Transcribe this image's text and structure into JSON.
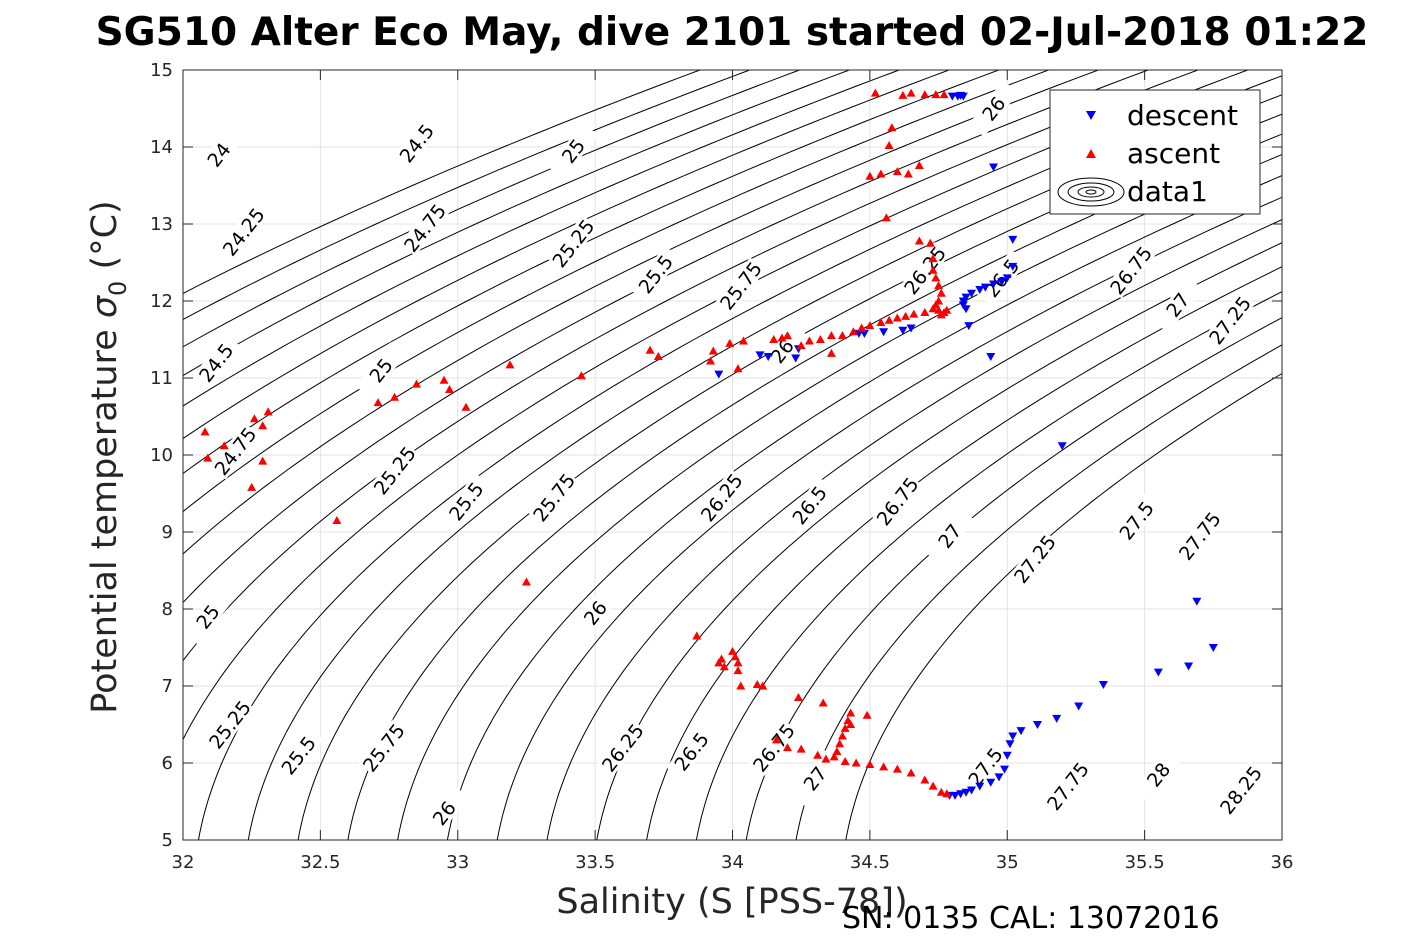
{
  "chart_data": {
    "type": "scatter",
    "title": "SG510 Alter Eco May, dive 2101 started 02-Jul-2018 01:22",
    "xlabel": "Salinity (S [PSS-78])",
    "ylabel_main": "Potential temperature ",
    "ylabel_symbol": "σ",
    "ylabel_sub": "0",
    "ylabel_unit": " (°C)",
    "footer": "SN: 0135  CAL: 13072016",
    "xlim": [
      32,
      36
    ],
    "ylim": [
      5,
      15
    ],
    "xticks": [
      "32",
      "32.5",
      "33",
      "33.5",
      "34",
      "34.5",
      "35",
      "35.5",
      "36"
    ],
    "yticks": [
      "5",
      "6",
      "7",
      "8",
      "9",
      "10",
      "11",
      "12",
      "13",
      "14",
      "15"
    ],
    "grid": true,
    "legend_position": "top-right",
    "legend": [
      "descent",
      "ascent",
      "data1"
    ],
    "colors": {
      "descent": "#0000ff",
      "ascent": "#ff0000",
      "contour": "#000000"
    },
    "contours": {
      "levels": [
        "24",
        "24.25",
        "24.5",
        "24.75",
        "25",
        "25.25",
        "25.5",
        "25.75",
        "26",
        "26.25",
        "26.5",
        "26.75",
        "27",
        "27.25",
        "27.5",
        "27.75",
        "28",
        "28.25"
      ],
      "labels": [
        {
          "text": "24",
          "s": 32.13,
          "t": 13.9
        },
        {
          "text": "24.25",
          "s": 32.22,
          "t": 12.9
        },
        {
          "text": "24.5",
          "s": 32.12,
          "t": 11.2
        },
        {
          "text": "24.75",
          "s": 32.19,
          "t": 10.05
        },
        {
          "text": "25",
          "s": 32.09,
          "t": 7.9
        },
        {
          "text": "25.25",
          "s": 32.17,
          "t": 6.5
        },
        {
          "text": "24.5",
          "s": 32.85,
          "t": 14.05
        },
        {
          "text": "24.75",
          "s": 32.88,
          "t": 12.95
        },
        {
          "text": "25",
          "s": 32.72,
          "t": 11.1
        },
        {
          "text": "25.25",
          "s": 32.77,
          "t": 9.8
        },
        {
          "text": "25.5",
          "s": 32.42,
          "t": 6.1
        },
        {
          "text": "25.75",
          "s": 32.73,
          "t": 6.2
        },
        {
          "text": "26",
          "s": 32.95,
          "t": 5.35
        },
        {
          "text": "25",
          "s": 33.42,
          "t": 13.95
        },
        {
          "text": "25.25",
          "s": 33.42,
          "t": 12.75
        },
        {
          "text": "25.5",
          "s": 33.72,
          "t": 12.35
        },
        {
          "text": "25.75",
          "s": 34.03,
          "t": 12.2
        },
        {
          "text": "26",
          "s": 34.18,
          "t": 11.35
        },
        {
          "text": "25.5",
          "s": 33.03,
          "t": 9.4
        },
        {
          "text": "25.75",
          "s": 33.35,
          "t": 9.45
        },
        {
          "text": "26",
          "s": 33.5,
          "t": 7.95
        },
        {
          "text": "26.25",
          "s": 33.96,
          "t": 9.45
        },
        {
          "text": "26.5",
          "s": 34.28,
          "t": 9.35
        },
        {
          "text": "26.75",
          "s": 34.6,
          "t": 9.4
        },
        {
          "text": "27",
          "s": 34.79,
          "t": 8.95
        },
        {
          "text": "27.25",
          "s": 35.1,
          "t": 8.65
        },
        {
          "text": "27.5",
          "s": 35.47,
          "t": 9.15
        },
        {
          "text": "27.75",
          "s": 35.7,
          "t": 8.95
        },
        {
          "text": "26.25",
          "s": 33.6,
          "t": 6.2
        },
        {
          "text": "26.5",
          "s": 33.85,
          "t": 6.15
        },
        {
          "text": "26.75",
          "s": 34.15,
          "t": 6.2
        },
        {
          "text": "27",
          "s": 34.3,
          "t": 5.8
        },
        {
          "text": "27.5",
          "s": 34.92,
          "t": 5.95
        },
        {
          "text": "27.75",
          "s": 35.22,
          "t": 5.7
        },
        {
          "text": "28",
          "s": 35.55,
          "t": 5.85
        },
        {
          "text": "28.25",
          "s": 35.85,
          "t": 5.65
        },
        {
          "text": "26",
          "s": 34.95,
          "t": 14.5
        },
        {
          "text": "26.25",
          "s": 34.7,
          "t": 12.4
        },
        {
          "text": "26.5",
          "s": 34.98,
          "t": 12.3
        },
        {
          "text": "26.75",
          "s": 35.45,
          "t": 12.4
        },
        {
          "text": "27",
          "s": 35.62,
          "t": 11.95
        },
        {
          "text": "27.25",
          "s": 35.81,
          "t": 11.75
        }
      ]
    },
    "series": [
      {
        "name": "descent",
        "marker": "triangle-down",
        "points": [
          [
            34.8,
            14.66
          ],
          [
            34.82,
            14.66
          ],
          [
            34.83,
            14.67
          ],
          [
            34.84,
            14.66
          ],
          [
            34.95,
            13.74
          ],
          [
            35.02,
            12.8
          ],
          [
            35.02,
            12.45
          ],
          [
            35.0,
            12.3
          ],
          [
            34.98,
            12.25
          ],
          [
            34.95,
            12.22
          ],
          [
            34.92,
            12.18
          ],
          [
            34.9,
            12.15
          ],
          [
            34.87,
            12.1
          ],
          [
            34.85,
            12.05
          ],
          [
            34.84,
            12.0
          ],
          [
            34.84,
            11.95
          ],
          [
            34.85,
            11.9
          ],
          [
            34.86,
            11.68
          ],
          [
            34.94,
            11.28
          ],
          [
            34.65,
            11.65
          ],
          [
            34.62,
            11.62
          ],
          [
            34.55,
            11.6
          ],
          [
            34.48,
            11.58
          ],
          [
            34.46,
            11.58
          ],
          [
            34.24,
            11.38
          ],
          [
            34.23,
            11.26
          ],
          [
            34.13,
            11.28
          ],
          [
            34.1,
            11.3
          ],
          [
            33.95,
            11.05
          ],
          [
            35.2,
            10.12
          ],
          [
            35.75,
            7.5
          ],
          [
            35.69,
            8.1
          ],
          [
            35.66,
            7.26
          ],
          [
            35.55,
            7.18
          ],
          [
            35.35,
            7.02
          ],
          [
            35.26,
            6.74
          ],
          [
            35.18,
            6.58
          ],
          [
            35.11,
            6.5
          ],
          [
            35.05,
            6.42
          ],
          [
            35.02,
            6.35
          ],
          [
            35.01,
            6.25
          ],
          [
            35.0,
            6.1
          ],
          [
            34.99,
            5.92
          ],
          [
            34.97,
            5.82
          ],
          [
            34.94,
            5.75
          ],
          [
            34.9,
            5.7
          ],
          [
            34.87,
            5.65
          ],
          [
            34.85,
            5.62
          ],
          [
            34.83,
            5.6
          ],
          [
            34.81,
            5.58
          ],
          [
            34.79,
            5.58
          ]
        ]
      },
      {
        "name": "ascent",
        "marker": "triangle-up",
        "points": [
          [
            34.52,
            14.7
          ],
          [
            34.62,
            14.67
          ],
          [
            34.65,
            14.7
          ],
          [
            34.7,
            14.68
          ],
          [
            34.74,
            14.68
          ],
          [
            34.77,
            14.68
          ],
          [
            34.58,
            14.25
          ],
          [
            34.57,
            14.02
          ],
          [
            34.5,
            13.62
          ],
          [
            34.54,
            13.65
          ],
          [
            34.6,
            13.68
          ],
          [
            34.64,
            13.65
          ],
          [
            34.68,
            13.76
          ],
          [
            34.56,
            13.08
          ],
          [
            34.68,
            12.78
          ],
          [
            34.72,
            12.75
          ],
          [
            34.73,
            12.55
          ],
          [
            34.73,
            12.4
          ],
          [
            34.74,
            12.3
          ],
          [
            34.75,
            12.2
          ],
          [
            34.76,
            12.1
          ],
          [
            34.75,
            12.0
          ],
          [
            34.74,
            11.95
          ],
          [
            34.73,
            11.9
          ],
          [
            34.75,
            11.88
          ],
          [
            34.77,
            11.85
          ],
          [
            34.78,
            11.88
          ],
          [
            34.76,
            11.82
          ],
          [
            34.7,
            11.85
          ],
          [
            34.66,
            11.83
          ],
          [
            34.63,
            11.8
          ],
          [
            34.6,
            11.78
          ],
          [
            34.57,
            11.75
          ],
          [
            34.54,
            11.72
          ],
          [
            34.5,
            11.68
          ],
          [
            34.47,
            11.65
          ],
          [
            34.44,
            11.6
          ],
          [
            34.4,
            11.55
          ],
          [
            34.36,
            11.55
          ],
          [
            34.32,
            11.5
          ],
          [
            34.28,
            11.48
          ],
          [
            34.25,
            11.42
          ],
          [
            34.36,
            11.32
          ],
          [
            34.2,
            11.55
          ],
          [
            34.18,
            11.52
          ],
          [
            34.15,
            11.5
          ],
          [
            34.04,
            11.48
          ],
          [
            33.99,
            11.45
          ],
          [
            33.93,
            11.35
          ],
          [
            33.92,
            11.22
          ],
          [
            34.02,
            11.12
          ],
          [
            33.73,
            11.28
          ],
          [
            33.7,
            11.36
          ],
          [
            33.45,
            11.03
          ],
          [
            33.19,
            11.17
          ],
          [
            33.03,
            10.62
          ],
          [
            32.97,
            10.85
          ],
          [
            32.95,
            10.97
          ],
          [
            32.85,
            10.92
          ],
          [
            32.77,
            10.75
          ],
          [
            32.71,
            10.68
          ],
          [
            32.31,
            10.56
          ],
          [
            32.26,
            10.47
          ],
          [
            32.29,
            10.38
          ],
          [
            32.08,
            10.3
          ],
          [
            32.15,
            10.12
          ],
          [
            32.09,
            9.96
          ],
          [
            32.29,
            9.92
          ],
          [
            32.25,
            9.58
          ],
          [
            32.56,
            9.15
          ],
          [
            33.25,
            8.35
          ],
          [
            33.87,
            7.65
          ],
          [
            33.95,
            7.3
          ],
          [
            33.96,
            7.35
          ],
          [
            33.97,
            7.25
          ],
          [
            34.0,
            7.45
          ],
          [
            34.01,
            7.38
          ],
          [
            34.02,
            7.3
          ],
          [
            34.02,
            7.2
          ],
          [
            34.03,
            7.0
          ],
          [
            34.09,
            7.02
          ],
          [
            34.11,
            7.0
          ],
          [
            34.24,
            6.85
          ],
          [
            34.33,
            6.78
          ],
          [
            34.43,
            6.65
          ],
          [
            34.42,
            6.55
          ],
          [
            34.41,
            6.45
          ],
          [
            34.4,
            6.35
          ],
          [
            34.39,
            6.25
          ],
          [
            34.38,
            6.15
          ],
          [
            34.37,
            6.08
          ],
          [
            34.34,
            6.05
          ],
          [
            34.31,
            6.1
          ],
          [
            34.25,
            6.18
          ],
          [
            34.2,
            6.2
          ],
          [
            34.16,
            6.3
          ],
          [
            34.41,
            6.02
          ],
          [
            34.45,
            6.0
          ],
          [
            34.5,
            5.98
          ],
          [
            34.55,
            5.95
          ],
          [
            34.6,
            5.92
          ],
          [
            34.65,
            5.87
          ],
          [
            34.7,
            5.78
          ],
          [
            34.73,
            5.7
          ],
          [
            34.76,
            5.62
          ],
          [
            34.78,
            5.6
          ],
          [
            34.49,
            6.62
          ],
          [
            34.43,
            6.5
          ]
        ]
      }
    ]
  }
}
